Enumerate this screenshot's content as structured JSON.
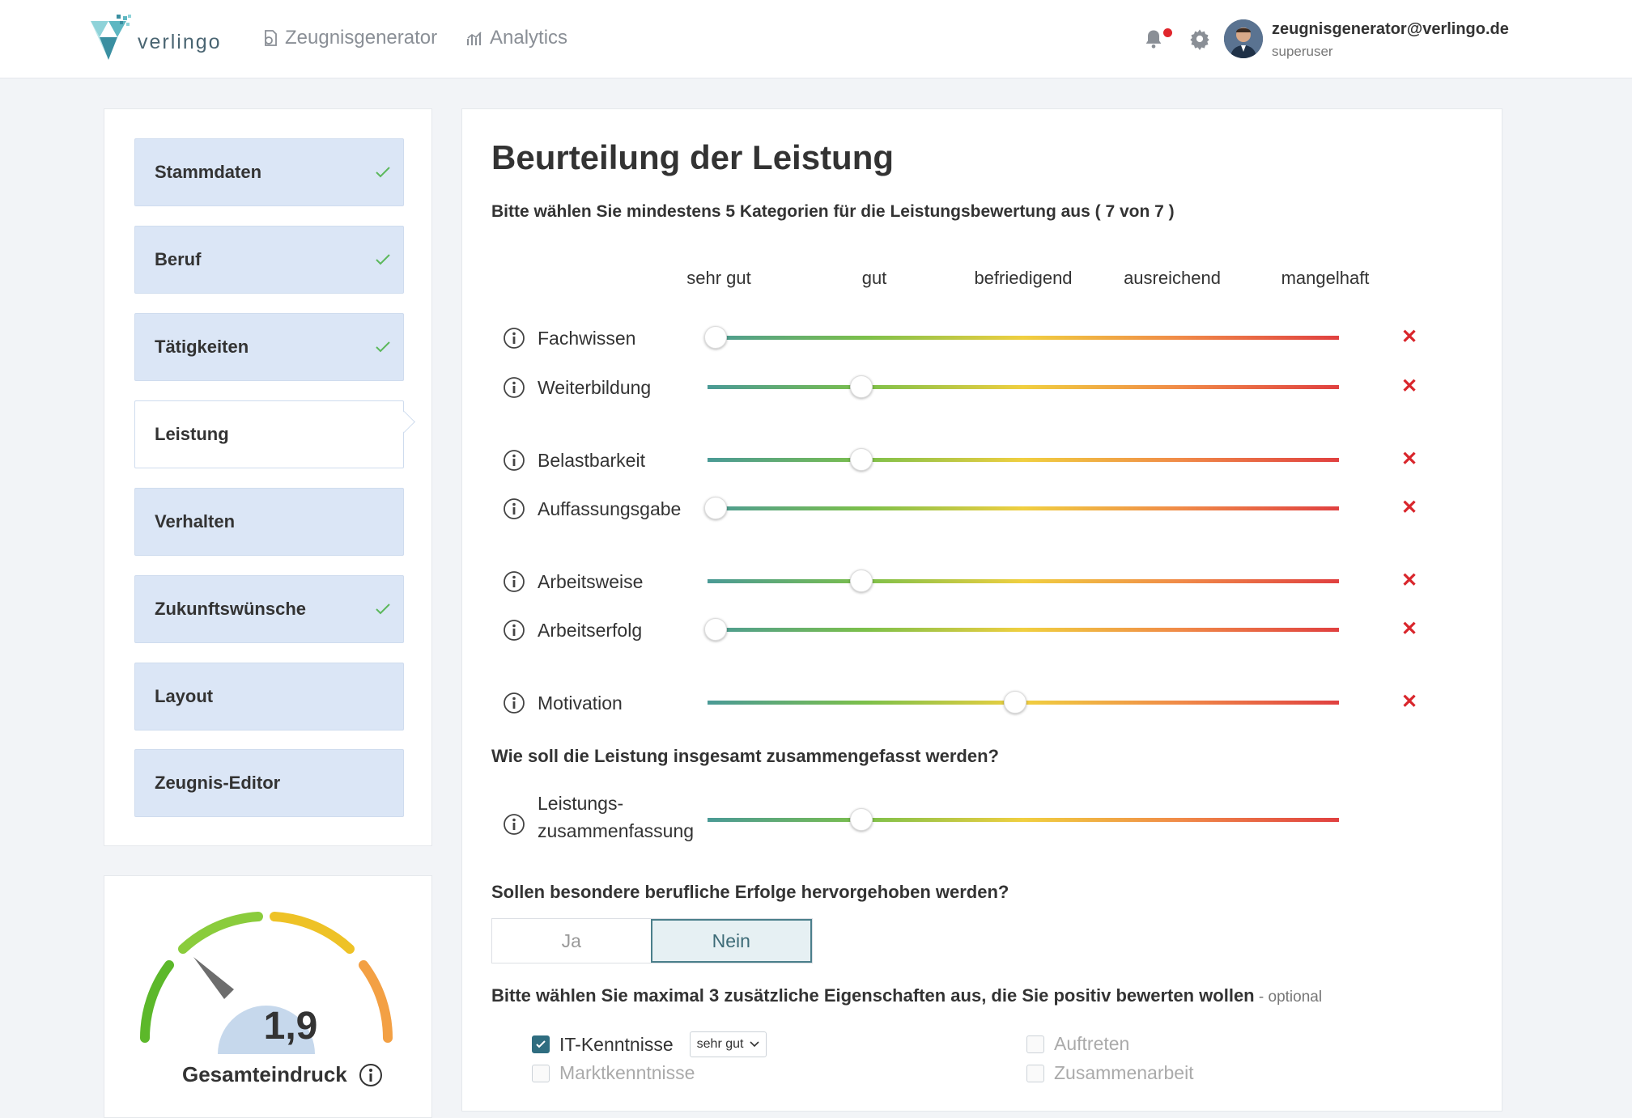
{
  "header": {
    "logo_text": "verlingo",
    "nav": [
      {
        "label": "Zeugnisgenerator",
        "icon": "document-icon"
      },
      {
        "label": "Analytics",
        "icon": "analytics-icon"
      }
    ],
    "user": {
      "email": "zeugnisgenerator@verlingo.de",
      "role": "superuser"
    }
  },
  "sidebar": {
    "steps": [
      {
        "label": "Stammdaten",
        "done": true,
        "active": false
      },
      {
        "label": "Beruf",
        "done": true,
        "active": false
      },
      {
        "label": "Tätigkeiten",
        "done": true,
        "active": false
      },
      {
        "label": "Leistung",
        "done": false,
        "active": true
      },
      {
        "label": "Verhalten",
        "done": false,
        "active": false
      },
      {
        "label": "Zukunftswünsche",
        "done": true,
        "active": false
      },
      {
        "label": "Layout",
        "done": false,
        "active": false
      },
      {
        "label": "Zeugnis-Editor",
        "done": false,
        "active": false
      }
    ],
    "gauge": {
      "value": "1,9",
      "label": "Gesamteindruck"
    }
  },
  "main": {
    "title": "Beurteilung der Leistung",
    "subtitle": "Bitte wählen Sie mindestens 5 Kategorien für die Leistungsbewertung aus ( 7 von 7 )",
    "grades": [
      "sehr gut",
      "gut",
      "befriedigend",
      "ausreichend",
      "mangelhaft"
    ],
    "ratings": [
      {
        "label": "Fachwissen",
        "level": 0
      },
      {
        "label": "Weiterbildung",
        "level": 1
      },
      {
        "label": "Belastbarkeit",
        "level": 1
      },
      {
        "label": "Auffassungsgabe",
        "level": 0
      },
      {
        "label": "Arbeitsweise",
        "level": 1
      },
      {
        "label": "Arbeitserfolg",
        "level": 0
      },
      {
        "label": "Motivation",
        "level": 2
      }
    ],
    "summary_question": "Wie soll die Leistung insgesamt zusammengefasst werden?",
    "summary_label_1": "Leistungs-",
    "summary_label_2": "zusammenfassung",
    "summary_level": 1,
    "success_question": "Sollen besondere berufliche Erfolge hervorgehoben werden?",
    "toggle": {
      "yes": "Ja",
      "no": "Nein",
      "selected": "no"
    },
    "extra_question": "Bitte wählen Sie maximal 3 zusätzliche Eigenschaften aus, die Sie positiv bewerten wollen",
    "extra_optional": " - optional",
    "extras": [
      {
        "label": "IT-Kenntnisse",
        "checked": true,
        "select": "sehr gut"
      },
      {
        "label": "Auftreten",
        "checked": false
      },
      {
        "label": "Marktkenntnisse",
        "checked": false
      },
      {
        "label": "Zusammenarbeit",
        "checked": false
      }
    ],
    "colors": {
      "accent": "#2f6d80",
      "remove": "#d9262c",
      "step_bg": "#dbe6f6"
    }
  }
}
